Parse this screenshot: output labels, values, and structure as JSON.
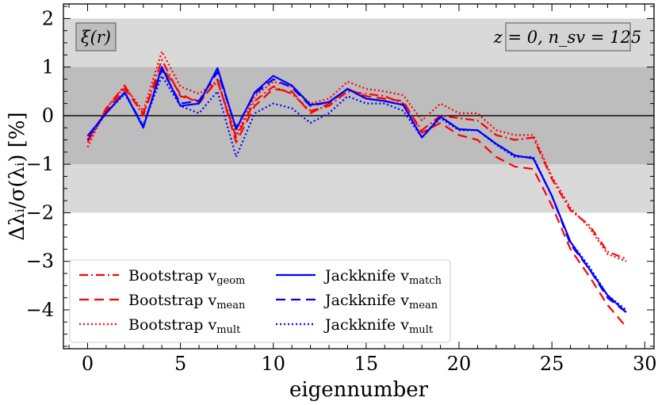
{
  "chart_data": {
    "type": "line",
    "xlabel": "eigennumber",
    "ylabel": "Δλᵢ/σ(λᵢ)  [%]",
    "xlim": [
      -1.3,
      30.5
    ],
    "ylim": [
      -4.8,
      2.3
    ],
    "x_ticks": [
      0,
      5,
      10,
      15,
      20,
      25,
      30
    ],
    "y_ticks": [
      -4,
      -3,
      -2,
      -1,
      0,
      1,
      2
    ],
    "x_tick_labels": [
      "0",
      "5",
      "10",
      "15",
      "20",
      "25",
      "30"
    ],
    "y_tick_labels": [
      "−4",
      "−3",
      "−2",
      "−1",
      "0",
      "1",
      "2"
    ],
    "bands": [
      {
        "from": -2,
        "to": 2,
        "color": "#d9d9d9"
      },
      {
        "from": -1,
        "to": 1,
        "color": "#bdbdbd"
      }
    ],
    "zero_line": true,
    "annotation_left": "ξ(r)",
    "annotation_right": "z = 0, n_sv = 125",
    "legend_position": "lower-left",
    "x": [
      0,
      1,
      2,
      3,
      4,
      5,
      6,
      7,
      8,
      9,
      10,
      11,
      12,
      13,
      14,
      15,
      16,
      17,
      18,
      19,
      20,
      21,
      22,
      23,
      24,
      25,
      26,
      27,
      28,
      29
    ],
    "series": [
      {
        "name": "Bootstrap",
        "sub": "geom",
        "color": "#ff0000",
        "dash": "dashdot",
        "values": [
          -0.55,
          0.15,
          0.62,
          0.0,
          1.15,
          0.4,
          0.3,
          0.7,
          -0.45,
          0.3,
          0.6,
          0.45,
          0.1,
          0.2,
          0.5,
          0.45,
          0.4,
          0.25,
          -0.3,
          0.0,
          -0.05,
          -0.1,
          -0.4,
          -0.5,
          -0.45,
          -1.3,
          -1.95,
          -2.25,
          -2.8,
          -2.95
        ]
      },
      {
        "name": "Bootstrap",
        "sub": "mean",
        "color": "#ff0000",
        "dash": "dash",
        "values": [
          -0.5,
          0.1,
          0.55,
          0.05,
          1.0,
          0.45,
          0.25,
          0.75,
          -0.55,
          0.2,
          0.55,
          0.5,
          0.05,
          0.25,
          0.55,
          0.4,
          0.35,
          0.3,
          -0.35,
          -0.15,
          -0.4,
          -0.5,
          -0.85,
          -1.05,
          -1.1,
          -1.85,
          -2.75,
          -3.3,
          -3.9,
          -4.35
        ]
      },
      {
        "name": "Bootstrap",
        "sub": "mult",
        "color": "#ff0000",
        "dash": "dot",
        "values": [
          -0.65,
          0.15,
          0.6,
          0.1,
          1.32,
          0.6,
          0.45,
          0.72,
          -0.4,
          0.4,
          0.7,
          0.6,
          0.25,
          0.35,
          0.7,
          0.55,
          0.5,
          0.42,
          -0.1,
          0.25,
          0.05,
          0.05,
          -0.3,
          -0.4,
          -0.4,
          -1.25,
          -1.9,
          -2.3,
          -2.85,
          -3.0
        ]
      },
      {
        "name": "Jackknife",
        "sub": "match",
        "color": "#0000ff",
        "dash": "solid",
        "values": [
          -0.42,
          0.05,
          0.48,
          -0.25,
          1.0,
          0.2,
          0.25,
          0.98,
          -0.28,
          0.48,
          0.82,
          0.62,
          0.22,
          0.28,
          0.55,
          0.35,
          0.3,
          0.22,
          -0.45,
          -0.02,
          -0.28,
          -0.3,
          -0.58,
          -0.82,
          -0.88,
          -1.65,
          -2.6,
          -3.15,
          -3.7,
          -4.05
        ]
      },
      {
        "name": "Jackknife",
        "sub": "mean",
        "color": "#0000ff",
        "dash": "dash",
        "values": [
          -0.42,
          0.05,
          0.48,
          -0.22,
          0.95,
          0.25,
          0.3,
          0.9,
          -0.25,
          0.45,
          0.75,
          0.58,
          0.2,
          0.28,
          0.55,
          0.35,
          0.3,
          0.22,
          -0.45,
          -0.02,
          -0.28,
          -0.3,
          -0.58,
          -0.82,
          -0.88,
          -1.65,
          -2.65,
          -3.15,
          -3.75,
          -4.05
        ]
      },
      {
        "name": "Jackknife",
        "sub": "mult",
        "color": "#0000ff",
        "dash": "dot",
        "values": [
          -0.5,
          0.05,
          0.45,
          -0.2,
          0.82,
          0.2,
          0.05,
          0.5,
          -0.85,
          0.05,
          0.25,
          0.15,
          -0.15,
          0.05,
          0.4,
          0.25,
          0.25,
          0.1,
          -0.45,
          -0.05,
          -0.3,
          -0.3,
          -0.6,
          -0.85,
          -0.85,
          -1.65,
          -2.6,
          -3.1,
          -3.7,
          -4.0
        ]
      }
    ]
  }
}
